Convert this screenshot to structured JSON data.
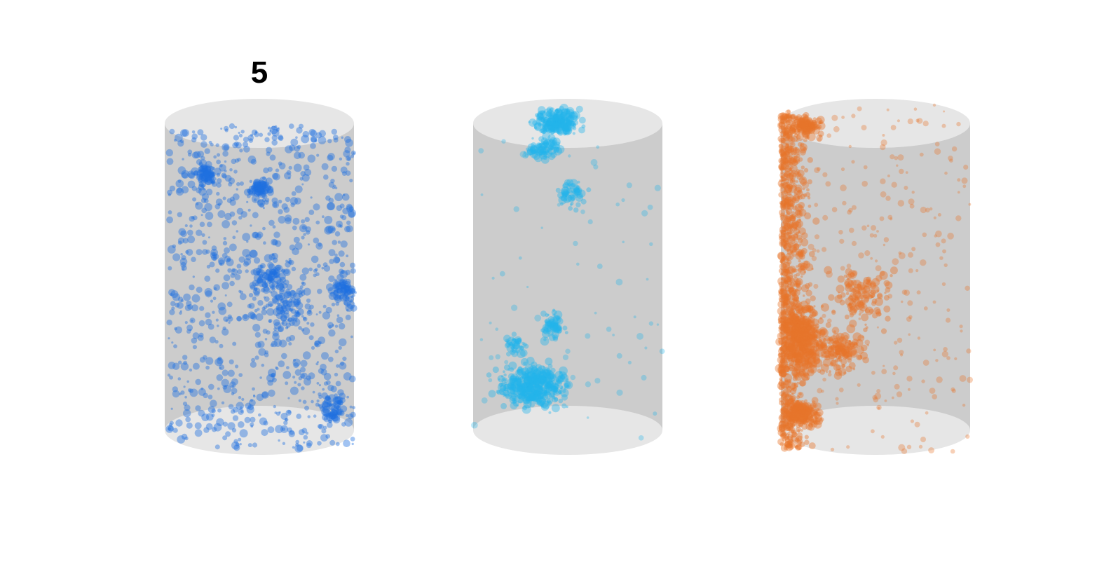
{
  "figure": {
    "panel_label": "5",
    "cylinders": [
      {
        "id": "left",
        "color": "#1f6fe0",
        "distribution": "uniform",
        "opacity": 0.42
      },
      {
        "id": "middle",
        "color": "#22b3ea",
        "distribution": "top-and-bottom-clusters",
        "opacity": 0.4
      },
      {
        "id": "right",
        "color": "#e8752a",
        "distribution": "left-side-and-bottom-dense",
        "opacity": 0.42
      }
    ],
    "colors": {
      "cylinder_body": "#cccccc",
      "cylinder_cap": "#e6e6e6",
      "background": "#ffffff"
    }
  }
}
